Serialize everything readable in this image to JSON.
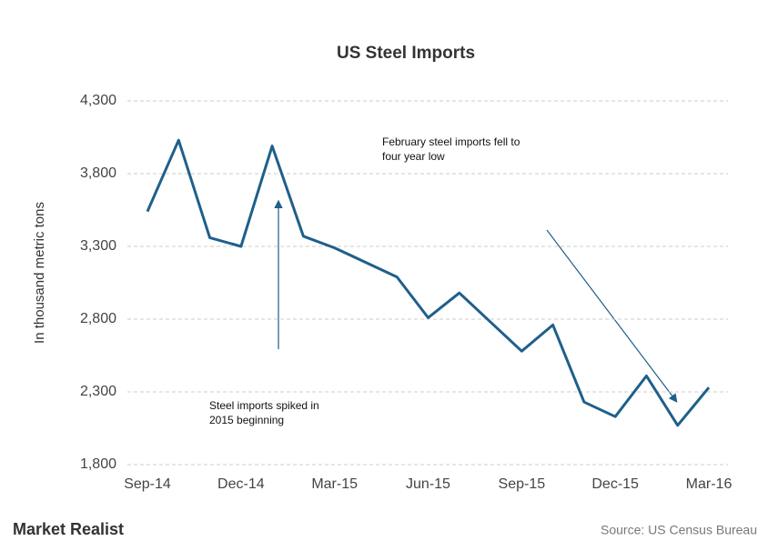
{
  "chart_data": {
    "type": "line",
    "title": "US Steel Imports",
    "y_label": "In thousand metric tons",
    "categories": [
      "Sep-14",
      null,
      null,
      "Dec-14",
      null,
      null,
      "Mar-15",
      null,
      null,
      "Jun-15",
      null,
      null,
      "Sep-15",
      null,
      null,
      "Dec-15",
      null,
      null,
      "Mar-16"
    ],
    "series": [
      {
        "name": "US Steel Imports",
        "color": "#1f5f8b",
        "values": [
          3540,
          4030,
          3360,
          3300,
          3990,
          3370,
          3290,
          3190,
          3090,
          2810,
          2980,
          2780,
          2580,
          2760,
          2230,
          2130,
          2410,
          2070,
          2330
        ]
      }
    ],
    "ylim": [
      1800,
      4300
    ],
    "yticks": [
      {
        "value": 1800,
        "label": "1,800"
      },
      {
        "value": 2300,
        "label": "2,300"
      },
      {
        "value": 2800,
        "label": "2,800"
      },
      {
        "value": 3300,
        "label": "3,300"
      },
      {
        "value": 3800,
        "label": "3,800"
      },
      {
        "value": 4300,
        "label": "4,300"
      }
    ],
    "grid": true,
    "annotations": [
      "February steel imports fell to",
      "four year low",
      "Steel imports spiked in",
      "2015 beginning"
    ],
    "brand": "Market Realist",
    "source": "Source: US Census Bureau"
  }
}
